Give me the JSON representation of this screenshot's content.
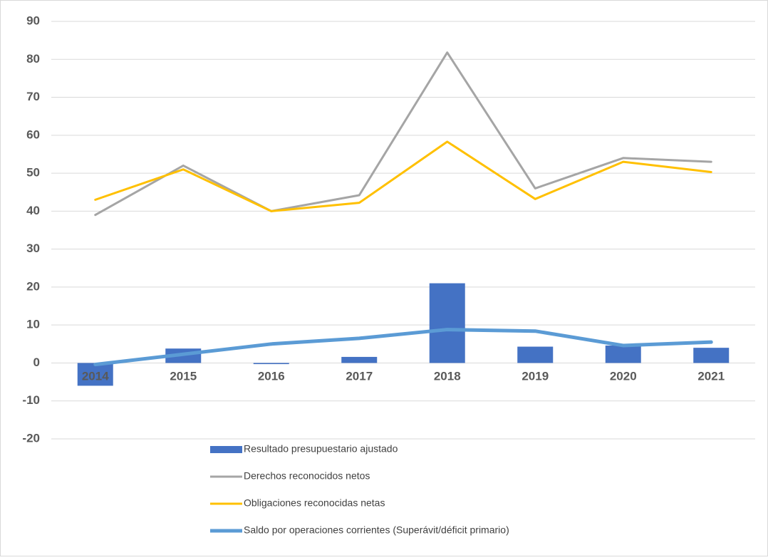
{
  "chart_data": {
    "type": "combo",
    "categories": [
      "2014",
      "2015",
      "2016",
      "2017",
      "2018",
      "2019",
      "2020",
      "2021"
    ],
    "series": [
      {
        "name": "Resultado presupuestario ajustado",
        "type": "bar",
        "color": "#4472c4",
        "values": [
          -6,
          3.8,
          -0.3,
          1.6,
          21,
          4.3,
          4.6,
          4.0
        ]
      },
      {
        "name": "Derechos reconocidos netos",
        "type": "line",
        "color": "#a5a5a5",
        "values": [
          39,
          52,
          40,
          44.2,
          81.8,
          46,
          54,
          53
        ]
      },
      {
        "name": "Obligaciones reconocidas netas",
        "type": "line",
        "color": "#ffc000",
        "values": [
          43,
          51,
          40,
          42.2,
          58.3,
          43.2,
          53,
          50.3
        ]
      },
      {
        "name": "Saldo por operaciones corrientes (Superávit/déficit primario)",
        "type": "line",
        "color": "#5b9bd5",
        "values": [
          -0.4,
          2.3,
          5,
          6.5,
          8.8,
          8.4,
          4.6,
          5.5
        ]
      }
    ],
    "ylim": [
      -20,
      90
    ],
    "yticks": [
      -20,
      -10,
      0,
      10,
      20,
      30,
      40,
      50,
      60,
      70,
      80,
      90
    ],
    "grid": true,
    "legend": "bottom"
  }
}
